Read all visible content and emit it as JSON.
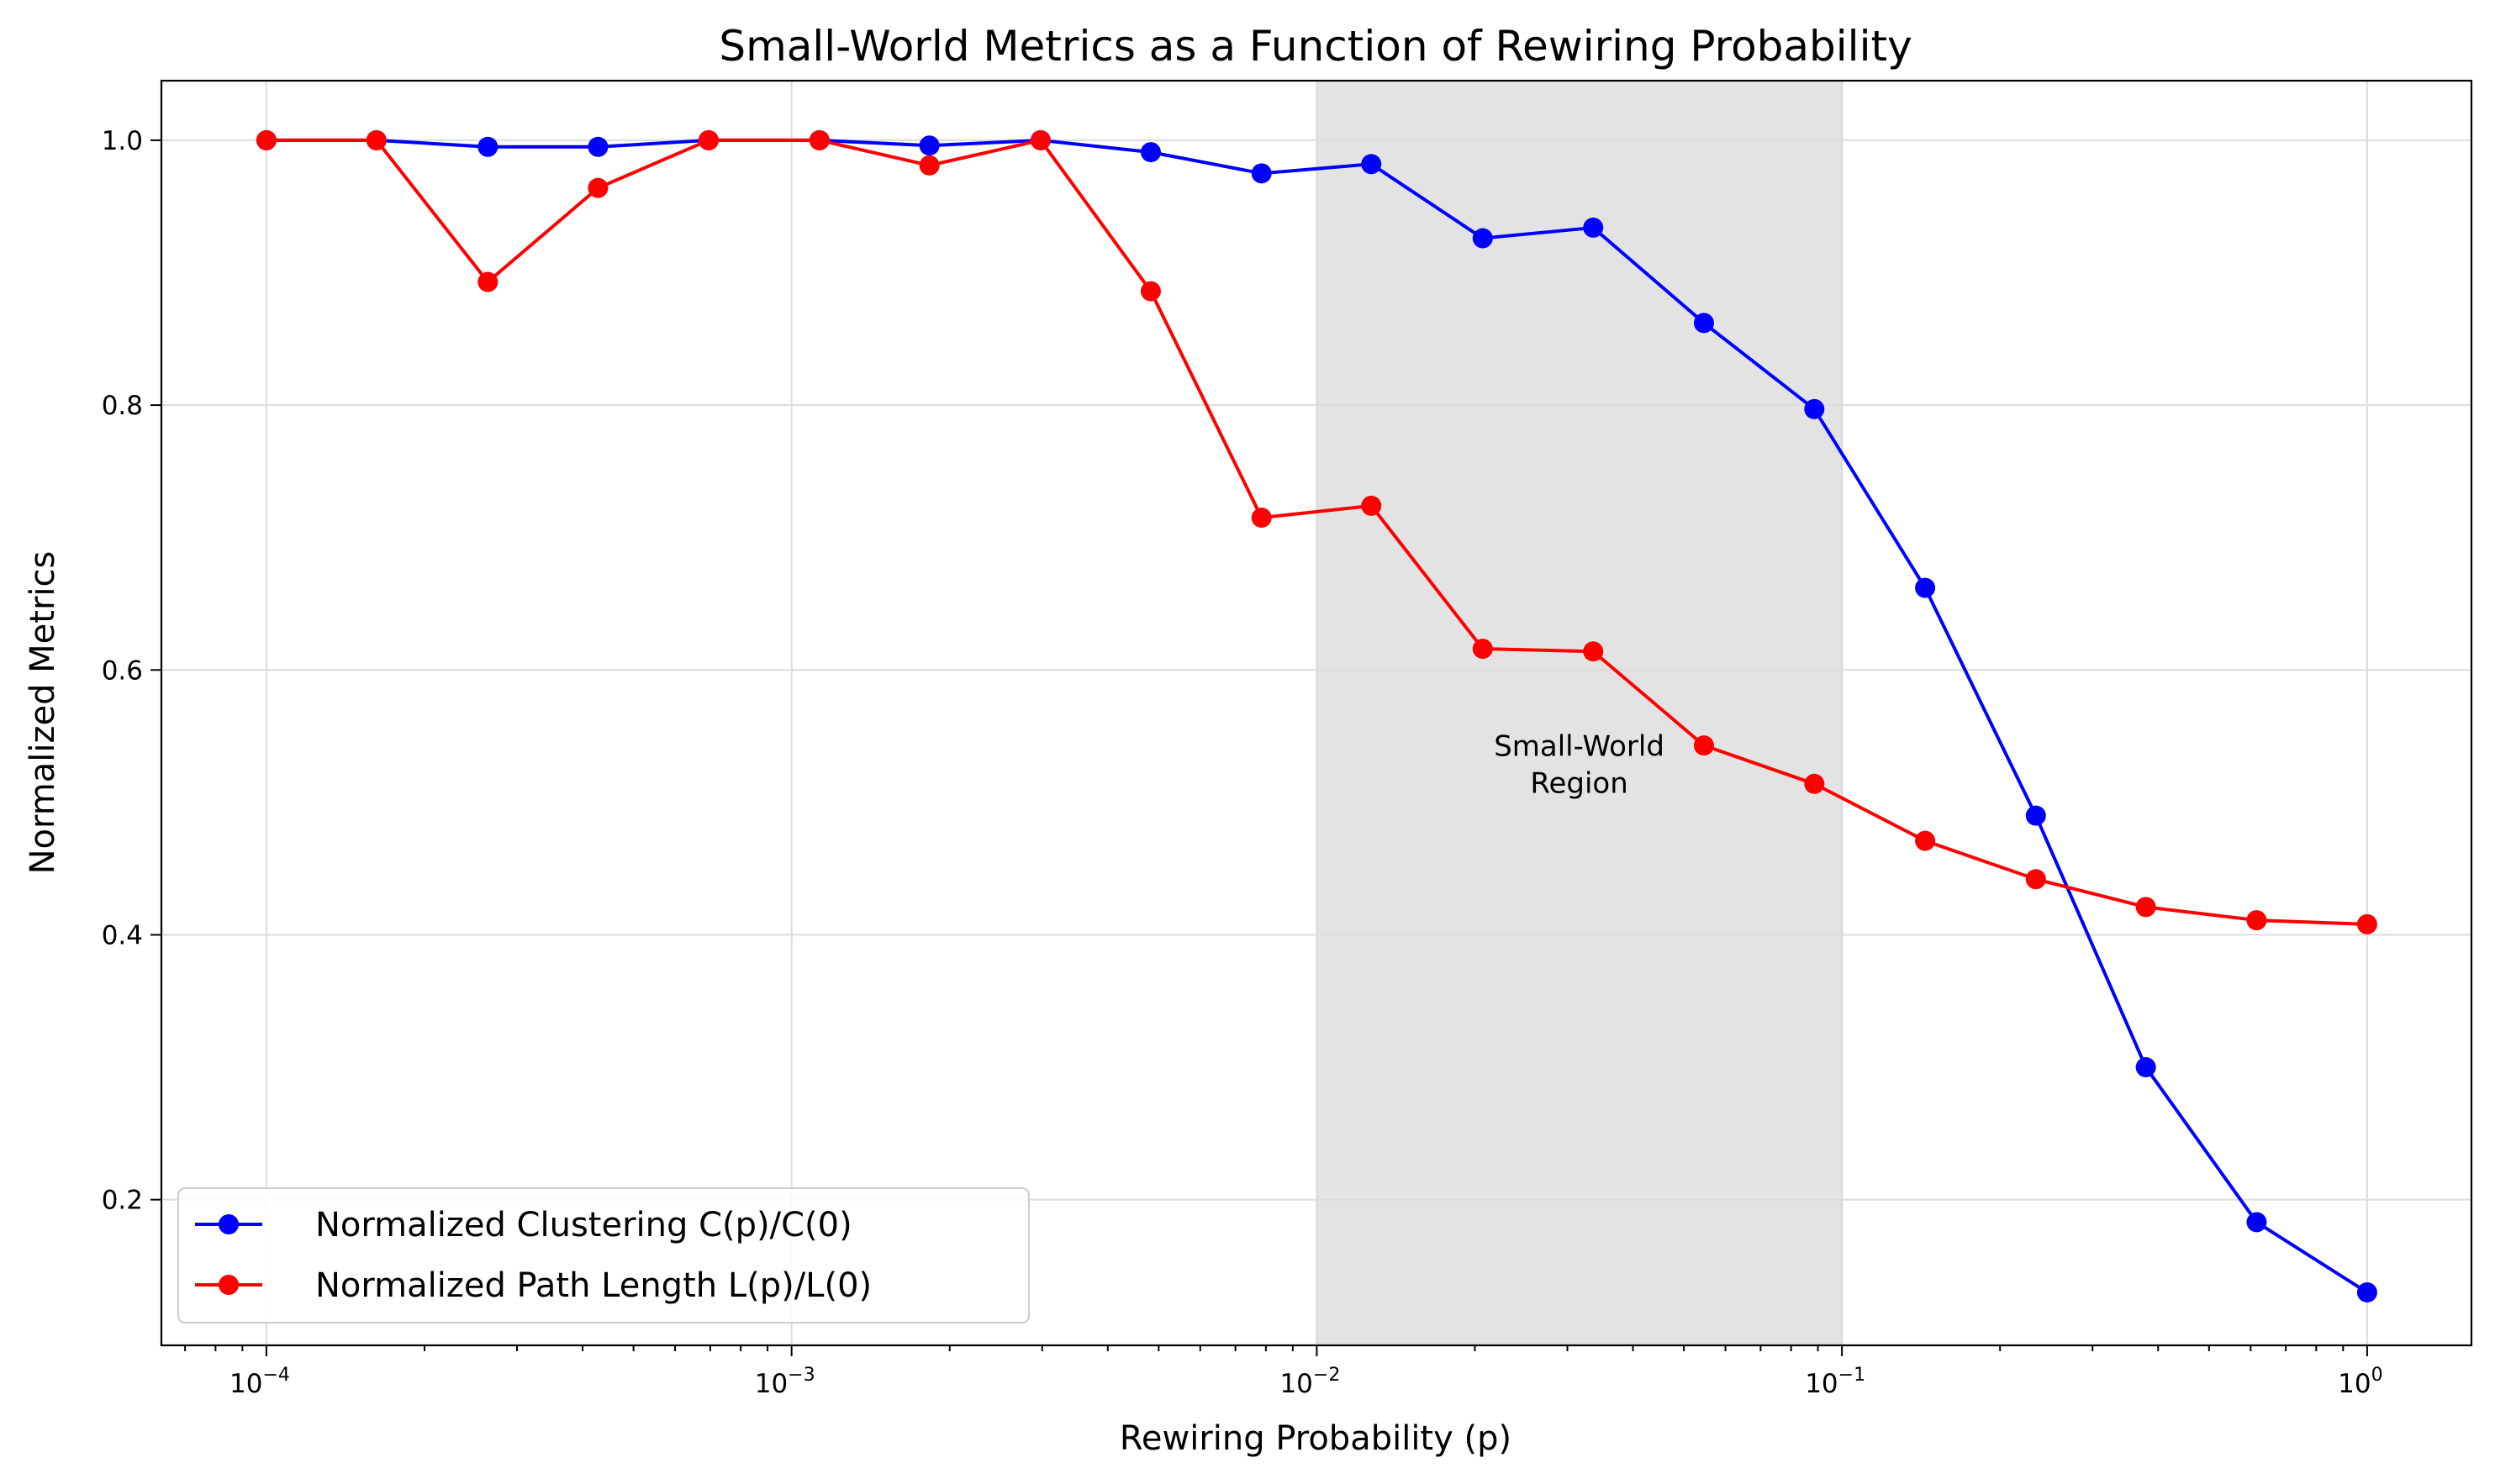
{
  "chart_data": {
    "type": "line",
    "title": "Small-World Metrics as a Function of Rewiring Probability",
    "xlabel": "Rewiring Probability (p)",
    "ylabel": "Normalized Metrics",
    "xscale": "log",
    "xlim": [
      6.31e-05,
      1.58
    ],
    "ylim": [
      0.09,
      1.045
    ],
    "x_ticks": [
      {
        "value": 0.0001,
        "base": "10",
        "exp": "−4"
      },
      {
        "value": 0.001,
        "base": "10",
        "exp": "−3"
      },
      {
        "value": 0.01,
        "base": "10",
        "exp": "−2"
      },
      {
        "value": 0.1,
        "base": "10",
        "exp": "−1"
      },
      {
        "value": 1,
        "base": "10",
        "exp": "0"
      }
    ],
    "y_ticks": [
      {
        "value": 0.2,
        "label": "0.2"
      },
      {
        "value": 0.4,
        "label": "0.4"
      },
      {
        "value": 0.6,
        "label": "0.6"
      },
      {
        "value": 0.8,
        "label": "0.8"
      },
      {
        "value": 1.0,
        "label": "1.0"
      }
    ],
    "grid": true,
    "legend_position": "lower-left",
    "shaded_region": {
      "x_start": 0.01,
      "x_end": 0.1,
      "label_line1": "Small-World",
      "label_line2": "Region",
      "label_x": 0.0316,
      "label_y": 0.52
    },
    "x": [
      0.0001,
      0.000162,
      0.000264,
      0.000428,
      0.000695,
      0.00113,
      0.00183,
      0.00298,
      0.00483,
      0.00785,
      0.0127,
      0.0207,
      0.0336,
      0.0546,
      0.0886,
      0.144,
      0.234,
      0.379,
      0.616,
      1.0
    ],
    "series": [
      {
        "name": "Normalized Clustering C(p)/C(0)",
        "color": "#0000ff",
        "values": [
          1.0,
          1.0,
          0.995,
          0.995,
          1.0,
          1.0,
          0.996,
          1.0,
          0.991,
          0.975,
          0.982,
          0.926,
          0.934,
          0.862,
          0.797,
          0.662,
          0.49,
          0.3,
          0.183,
          0.13
        ]
      },
      {
        "name": "Normalized Path Length L(p)/L(0)",
        "color": "#ff0000",
        "values": [
          1.0,
          1.0,
          0.893,
          0.964,
          1.0,
          1.0,
          0.981,
          1.0,
          0.886,
          0.715,
          0.724,
          0.616,
          0.614,
          0.543,
          0.514,
          0.471,
          0.442,
          0.421,
          0.411,
          0.408
        ]
      }
    ]
  }
}
